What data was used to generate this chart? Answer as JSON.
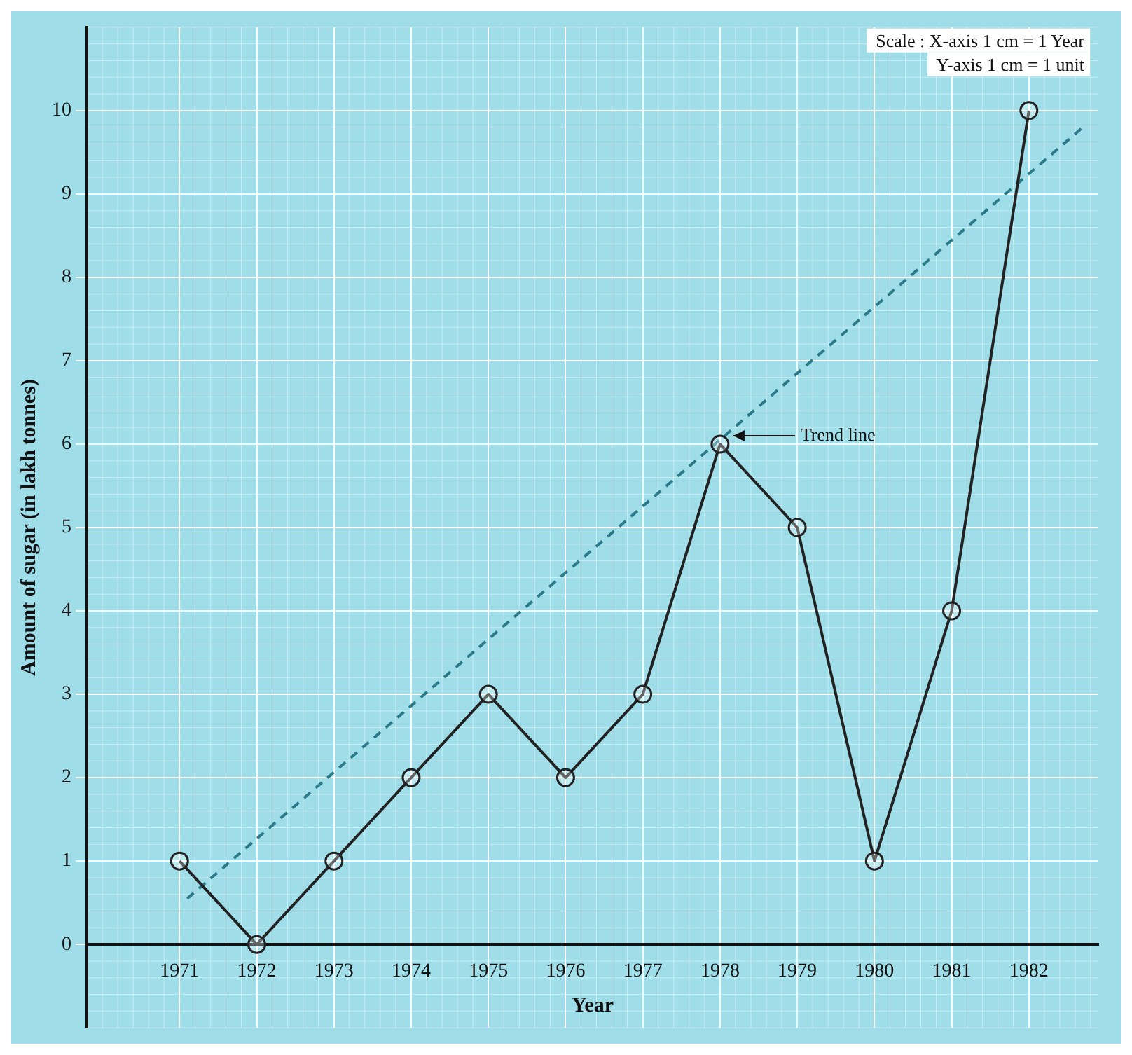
{
  "chart_data": {
    "type": "line",
    "xlabel": "Year",
    "ylabel": "Amount of sugar (in lakh tonnes)",
    "x": [
      1971,
      1972,
      1973,
      1974,
      1975,
      1976,
      1977,
      1978,
      1979,
      1980,
      1981,
      1982
    ],
    "series": [
      {
        "color": "#222222",
        "values": [
          1,
          0,
          1,
          2,
          3,
          2,
          3,
          6,
          5,
          1,
          4,
          10
        ]
      },
      {
        "type": "line",
        "color": "#2a7a8a",
        "x": [
          1971.1,
          1982.7
        ],
        "values": [
          0.55,
          9.8
        ],
        "line_style": "dashed",
        "marker": "none"
      }
    ],
    "xlim": [
      1969.8,
      1982.9
    ],
    "ylim": [
      -1,
      11
    ],
    "xticks": [
      1971,
      1972,
      1973,
      1974,
      1975,
      1976,
      1977,
      1978,
      1979,
      1980,
      1981,
      1982
    ],
    "yticks": [
      0,
      1,
      2,
      3,
      4,
      5,
      6,
      7,
      8,
      9,
      10
    ],
    "grid": true,
    "legend": false,
    "marker": "circle",
    "line_style": "solid",
    "annotations": [
      "Scale : X-axis 1 cm = 1 Year",
      "Y-axis 1 cm = 1 unit",
      {
        "text": "Trend line",
        "x": 1978.1,
        "y": 6.1
      }
    ]
  }
}
